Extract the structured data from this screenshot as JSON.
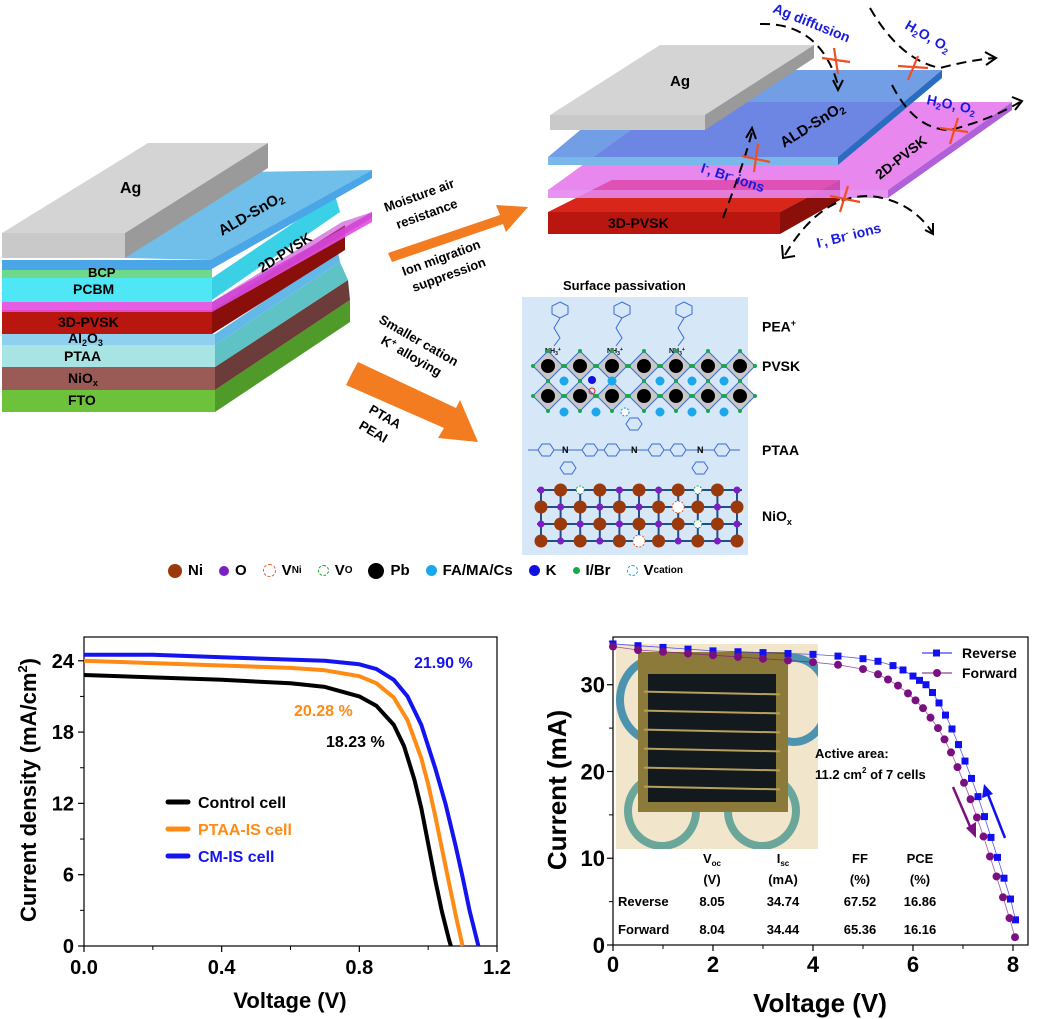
{
  "stack_diagram": {
    "layers": [
      {
        "label": "Ag",
        "color": "#c9c9c9"
      },
      {
        "label": "ALD-SnO2",
        "color": "#5aaee0"
      },
      {
        "label": "BCP",
        "color": "#6ed98a"
      },
      {
        "label": "PCBM",
        "color": "#4fe6f5"
      },
      {
        "label": "2D-PVSK",
        "color": "#d94fd6"
      },
      {
        "label": "3D-PVSK",
        "color": "#b8160f"
      },
      {
        "label": "Al2O3",
        "color": "#8fd0ef"
      },
      {
        "label": "PTAA",
        "color": "#a9e4e4"
      },
      {
        "label": "NiOx",
        "color": "#9a5a56"
      },
      {
        "label": "FTO",
        "color": "#6cc23a"
      }
    ],
    "text": {
      "ag": "Ag",
      "sno2": "ALD-SnO",
      "sno2_sub": "2",
      "pvsk2d": "2D-PVSK",
      "bcp": "BCP",
      "pcbm": "PCBM",
      "pvsk3d": "3D-PVSK",
      "al2o3_a": "Al",
      "al2o3_s1": "2",
      "al2o3_b": "O",
      "al2o3_s2": "3",
      "ptaa": "PTAA",
      "niox": "NiO",
      "niox_sub": "x",
      "fto": "FTO"
    }
  },
  "arrows": {
    "upper": {
      "line1": "Moisture air",
      "line2": "resistance",
      "line3": "Ion migration",
      "line4": "suppression"
    },
    "lower": {
      "line1": "Smaller cation",
      "line2": "K",
      "line2_sup": "+",
      "line2_rest": " alloying",
      "line3": "PTAA",
      "line4": "PEAI"
    },
    "color": "#f47c20"
  },
  "exploded_diagram": {
    "ag": "Ag",
    "sno2": "ALD-SnO",
    "sno2_sub": "2",
    "pvsk2d": "2D-PVSK",
    "pvsk3d": "3D-PVSK",
    "ag_diffusion": "Ag diffusion",
    "h2o_o2_a": "H",
    "h2o_o2_sub": "2",
    "h2o_o2_b": "O, O",
    "h2o_o2_sub2": "2",
    "ions_1": "I",
    "ions_2": ", Br",
    "ions_3": " ions",
    "ions_sup": "-",
    "label_color": "#1a1adf",
    "cross_color": "#f04e23"
  },
  "passivation_panel": {
    "title": "Surface passivation",
    "labels": {
      "pea": "PEA",
      "pea_sup": "+",
      "pvsk": "PVSK",
      "ptaa": "PTAA",
      "niox": "NiO",
      "niox_sub": "x",
      "nh3": "NH",
      "nh3_sub": "3",
      "nh3_sup": "+",
      "n": "N"
    },
    "bg_color": "#d6e8f8"
  },
  "legend": [
    {
      "label": "Ni",
      "sub": "",
      "color": "#9a3a0c",
      "style": "filled"
    },
    {
      "label": "O",
      "sub": "",
      "color": "#7b1fc0",
      "style": "filled"
    },
    {
      "label": "V",
      "sub": "Ni",
      "color": "#e0602a",
      "style": "dashed"
    },
    {
      "label": "V",
      "sub": "O",
      "color": "#1fa83a",
      "style": "dashed"
    },
    {
      "label": "Pb",
      "sub": "",
      "color": "#000000",
      "style": "filled"
    },
    {
      "label": "FA/MA/Cs",
      "sub": "",
      "color": "#1aa8ec",
      "style": "filled"
    },
    {
      "label": "K",
      "sub": "",
      "color": "#1010e0",
      "style": "filled"
    },
    {
      "label": "I/Br",
      "sub": "",
      "color": "#16a84a",
      "style": "filled"
    },
    {
      "label": "V",
      "sub": "cation",
      "color": "#1aa8ec",
      "style": "dashed"
    }
  ],
  "chart_data": [
    {
      "type": "line",
      "title": "",
      "xlabel": "Voltage (V)",
      "ylabel": "Current density (mA/cm2)",
      "ylabel_main": "Current density (mA/cm",
      "ylabel_sup": "2",
      "ylabel_close": ")",
      "xlim": [
        0,
        1.2
      ],
      "ylim": [
        0,
        26
      ],
      "xticks": [
        "0.0",
        "0.4",
        "0.8",
        "1.2"
      ],
      "xtick_values": [
        0,
        0.4,
        0.8,
        1.2
      ],
      "yticks": [
        "0",
        "6",
        "12",
        "18",
        "24"
      ],
      "ytick_values": [
        0,
        6,
        12,
        18,
        24
      ],
      "legend_position": "center-left",
      "series": [
        {
          "name": "Control cell",
          "color": "#000000",
          "pce_label": "18.23 %",
          "x": [
            0.0,
            0.2,
            0.4,
            0.6,
            0.7,
            0.8,
            0.85,
            0.9,
            0.93,
            0.96,
            0.98,
            1.0,
            1.02,
            1.04,
            1.06,
            1.066
          ],
          "y": [
            22.8,
            22.6,
            22.4,
            22.1,
            21.8,
            21.0,
            20.2,
            18.6,
            16.8,
            14.0,
            11.6,
            8.6,
            5.6,
            2.9,
            0.6,
            0.0
          ]
        },
        {
          "name": "PTAA-IS cell",
          "color": "#ff8a14",
          "pce_label": "20.28 %",
          "x": [
            0.0,
            0.2,
            0.4,
            0.6,
            0.7,
            0.8,
            0.85,
            0.9,
            0.94,
            0.98,
            1.0,
            1.02,
            1.04,
            1.06,
            1.08,
            1.1
          ],
          "y": [
            24.0,
            23.8,
            23.6,
            23.4,
            23.2,
            22.7,
            22.1,
            20.9,
            19.0,
            15.8,
            13.6,
            11.0,
            8.2,
            5.4,
            2.6,
            0.0
          ]
        },
        {
          "name": "CM-IS cell",
          "color": "#1414f0",
          "pce_label": "21.90 %",
          "x": [
            0.0,
            0.2,
            0.4,
            0.6,
            0.7,
            0.8,
            0.85,
            0.9,
            0.94,
            0.98,
            1.02,
            1.05,
            1.08,
            1.1,
            1.12,
            1.146
          ],
          "y": [
            24.5,
            24.5,
            24.3,
            24.1,
            24.0,
            23.7,
            23.3,
            22.4,
            21.0,
            18.6,
            15.0,
            12.0,
            8.4,
            5.8,
            3.0,
            0.0
          ]
        }
      ]
    },
    {
      "type": "scatter",
      "title": "",
      "xlabel": "Voltage (V)",
      "ylabel": "Current (mA)",
      "xlim": [
        0,
        8.3
      ],
      "ylim": [
        0,
        35.5
      ],
      "xticks": [
        "0",
        "2",
        "4",
        "6",
        "8"
      ],
      "xtick_values": [
        0,
        2,
        4,
        6,
        8
      ],
      "yticks": [
        "0",
        "10",
        "20",
        "30"
      ],
      "ytick_values": [
        0,
        10,
        20,
        30
      ],
      "legend_position": "top-right",
      "annotation_line1": "Active area:",
      "annotation_line2_a": "11.2 cm",
      "annotation_line2_sup": "2",
      "annotation_line2_b": " of 7 cells",
      "series": [
        {
          "name": "Reverse",
          "color": "#1010f0",
          "marker": "square",
          "x": [
            0.0,
            0.5,
            1.0,
            1.5,
            2.0,
            2.5,
            3.0,
            3.5,
            4.0,
            4.5,
            5.0,
            5.3,
            5.6,
            5.8,
            6.0,
            6.13,
            6.26,
            6.39,
            6.52,
            6.65,
            6.78,
            6.91,
            7.04,
            7.17,
            7.3,
            7.43,
            7.56,
            7.69,
            7.82,
            7.95,
            8.05
          ],
          "y": [
            34.7,
            34.5,
            34.3,
            34.1,
            33.9,
            33.8,
            33.7,
            33.6,
            33.5,
            33.3,
            33.0,
            32.7,
            32.2,
            31.7,
            31.0,
            30.5,
            30.0,
            29.1,
            27.9,
            26.5,
            24.9,
            23.1,
            21.2,
            19.2,
            17.1,
            14.8,
            12.4,
            10.1,
            7.7,
            5.3,
            2.9
          ]
        },
        {
          "name": "Forward",
          "color": "#7a1080",
          "marker": "circle",
          "x": [
            0.0,
            0.5,
            1.0,
            1.5,
            2.0,
            2.5,
            3.0,
            3.5,
            4.0,
            4.5,
            5.0,
            5.3,
            5.5,
            5.7,
            5.9,
            6.05,
            6.2,
            6.35,
            6.5,
            6.63,
            6.76,
            6.89,
            7.02,
            7.15,
            7.28,
            7.41,
            7.54,
            7.67,
            7.8,
            7.93,
            8.04
          ],
          "y": [
            34.4,
            34.0,
            33.8,
            33.6,
            33.4,
            33.2,
            33.0,
            32.8,
            32.6,
            32.3,
            31.8,
            31.2,
            30.6,
            29.9,
            29.0,
            28.2,
            27.3,
            26.2,
            25.0,
            23.7,
            22.2,
            20.5,
            18.7,
            16.8,
            14.7,
            12.5,
            10.2,
            7.9,
            5.5,
            3.1,
            0.9
          ]
        }
      ],
      "table": {
        "headers": [
          {
            "main": "V",
            "sub": "oc",
            "unit": "(V)"
          },
          {
            "main": "I",
            "sub": "sc",
            "unit": "(mA)"
          },
          {
            "main": "FF",
            "sub": "",
            "unit": "(%)"
          },
          {
            "main": "PCE",
            "sub": "",
            "unit": "(%)"
          }
        ],
        "rows": [
          {
            "label": "Reverse",
            "values": [
              "8.05",
              "34.74",
              "67.52",
              "16.86"
            ]
          },
          {
            "label": "Forward",
            "values": [
              "8.04",
              "34.44",
              "65.36",
              "16.16"
            ]
          }
        ]
      }
    }
  ]
}
